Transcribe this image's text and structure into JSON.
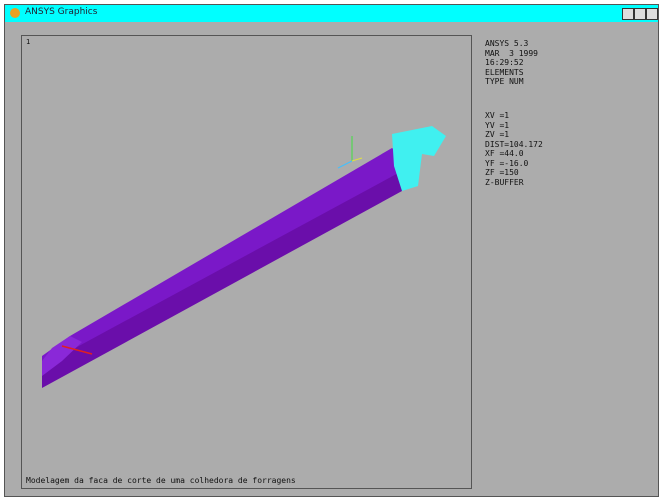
{
  "window": {
    "title": "ANSYS Graphics"
  },
  "viewport": {
    "label": "1",
    "caption": "Modelagem da faca de corte de uma colhedora de forragens"
  },
  "info": {
    "header": [
      "ANSYS 5.3",
      "MAR  3 1999",
      "16:29:52",
      "ELEMENTS",
      "TYPE NUM"
    ],
    "view": [
      "XV =1",
      "YV =1",
      "ZV =1",
      "DIST=104.172",
      "XF =44.0",
      "YF =-16.0",
      "ZF =150",
      "Z-BUFFER"
    ]
  }
}
